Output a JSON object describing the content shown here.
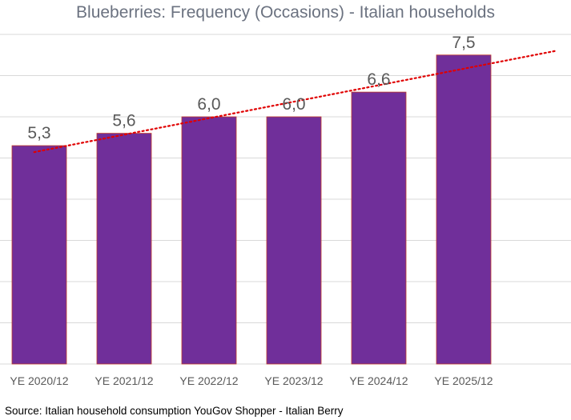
{
  "chart_data": {
    "type": "bar",
    "title": "Blueberries: Frequency (Occasions) - Italian households",
    "categories": [
      "YE 2020/12",
      "YE 2021/12",
      "YE 2022/12",
      "YE 2023/12",
      "YE 2024/12",
      "YE 2025/12"
    ],
    "values": [
      5.3,
      5.6,
      6.0,
      6.0,
      6.6,
      7.5
    ],
    "data_labels": [
      "5,3",
      "5,6",
      "6,0",
      "6,0",
      "6,6",
      "7,5"
    ],
    "ylim": [
      0,
      8
    ],
    "grid": true,
    "trendline": {
      "type": "linear",
      "style": "dotted"
    },
    "xlabel": "",
    "ylabel": ""
  },
  "colors": {
    "bar_fill": "#702f9a",
    "bar_border": "#c0392b",
    "trendline": "#e00000",
    "gridline": "#d9d9d9",
    "title": "#6b7280",
    "data_label": "#595959",
    "tick_label": "#595959"
  },
  "source_note": "Source: Italian household consumption YouGov Shopper - Italian Berry"
}
